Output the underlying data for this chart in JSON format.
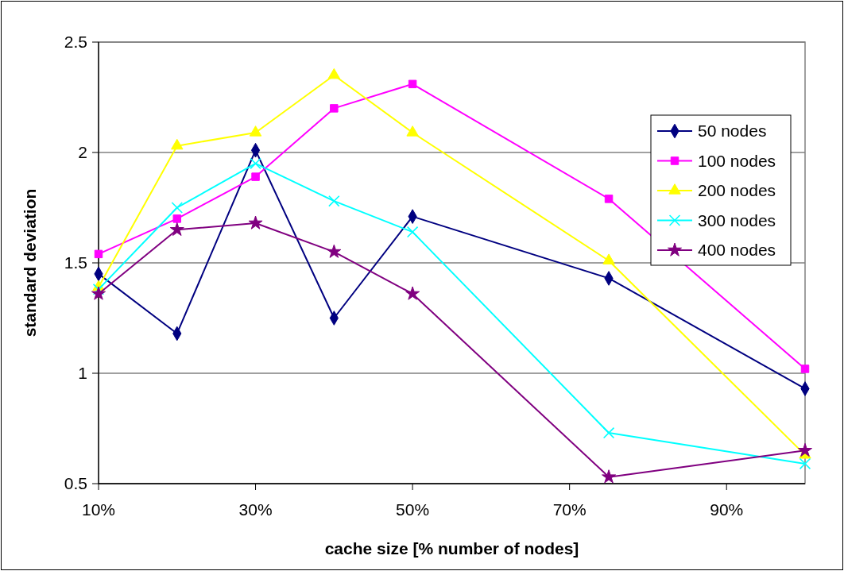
{
  "chart_data": {
    "type": "line",
    "xlabel": "cache size [% number of nodes]",
    "ylabel": "standard deviation",
    "x": [
      10,
      20,
      30,
      40,
      50,
      75,
      100
    ],
    "xlim": [
      10,
      100
    ],
    "xticks": [
      {
        "value": 10,
        "label": "10%"
      },
      {
        "value": 30,
        "label": "30%"
      },
      {
        "value": 50,
        "label": "50%"
      },
      {
        "value": 70,
        "label": "70%"
      },
      {
        "value": 90,
        "label": "90%"
      }
    ],
    "ylim": [
      0.5,
      2.5
    ],
    "yticks": [
      0.5,
      1,
      1.5,
      2,
      2.5
    ],
    "grid": "y",
    "legend": "right",
    "series": [
      {
        "name": "50 nodes",
        "color": "#000080",
        "marker": "diamond",
        "values": [
          1.45,
          1.18,
          2.01,
          1.25,
          1.71,
          1.43,
          0.93
        ]
      },
      {
        "name": "100 nodes",
        "color": "#ff00ff",
        "marker": "square",
        "values": [
          1.54,
          1.7,
          1.89,
          2.2,
          2.31,
          1.79,
          1.02
        ]
      },
      {
        "name": "200 nodes",
        "color": "#ffff00",
        "marker": "triangle",
        "values": [
          1.39,
          2.03,
          2.09,
          2.35,
          2.09,
          1.51,
          0.63
        ]
      },
      {
        "name": "300 nodes",
        "color": "#00ffff",
        "marker": "cross",
        "values": [
          1.38,
          1.75,
          1.95,
          1.78,
          1.64,
          0.73,
          0.59
        ]
      },
      {
        "name": "400 nodes",
        "color": "#800080",
        "marker": "star",
        "values": [
          1.36,
          1.65,
          1.68,
          1.55,
          1.36,
          0.53,
          0.65
        ]
      }
    ]
  }
}
